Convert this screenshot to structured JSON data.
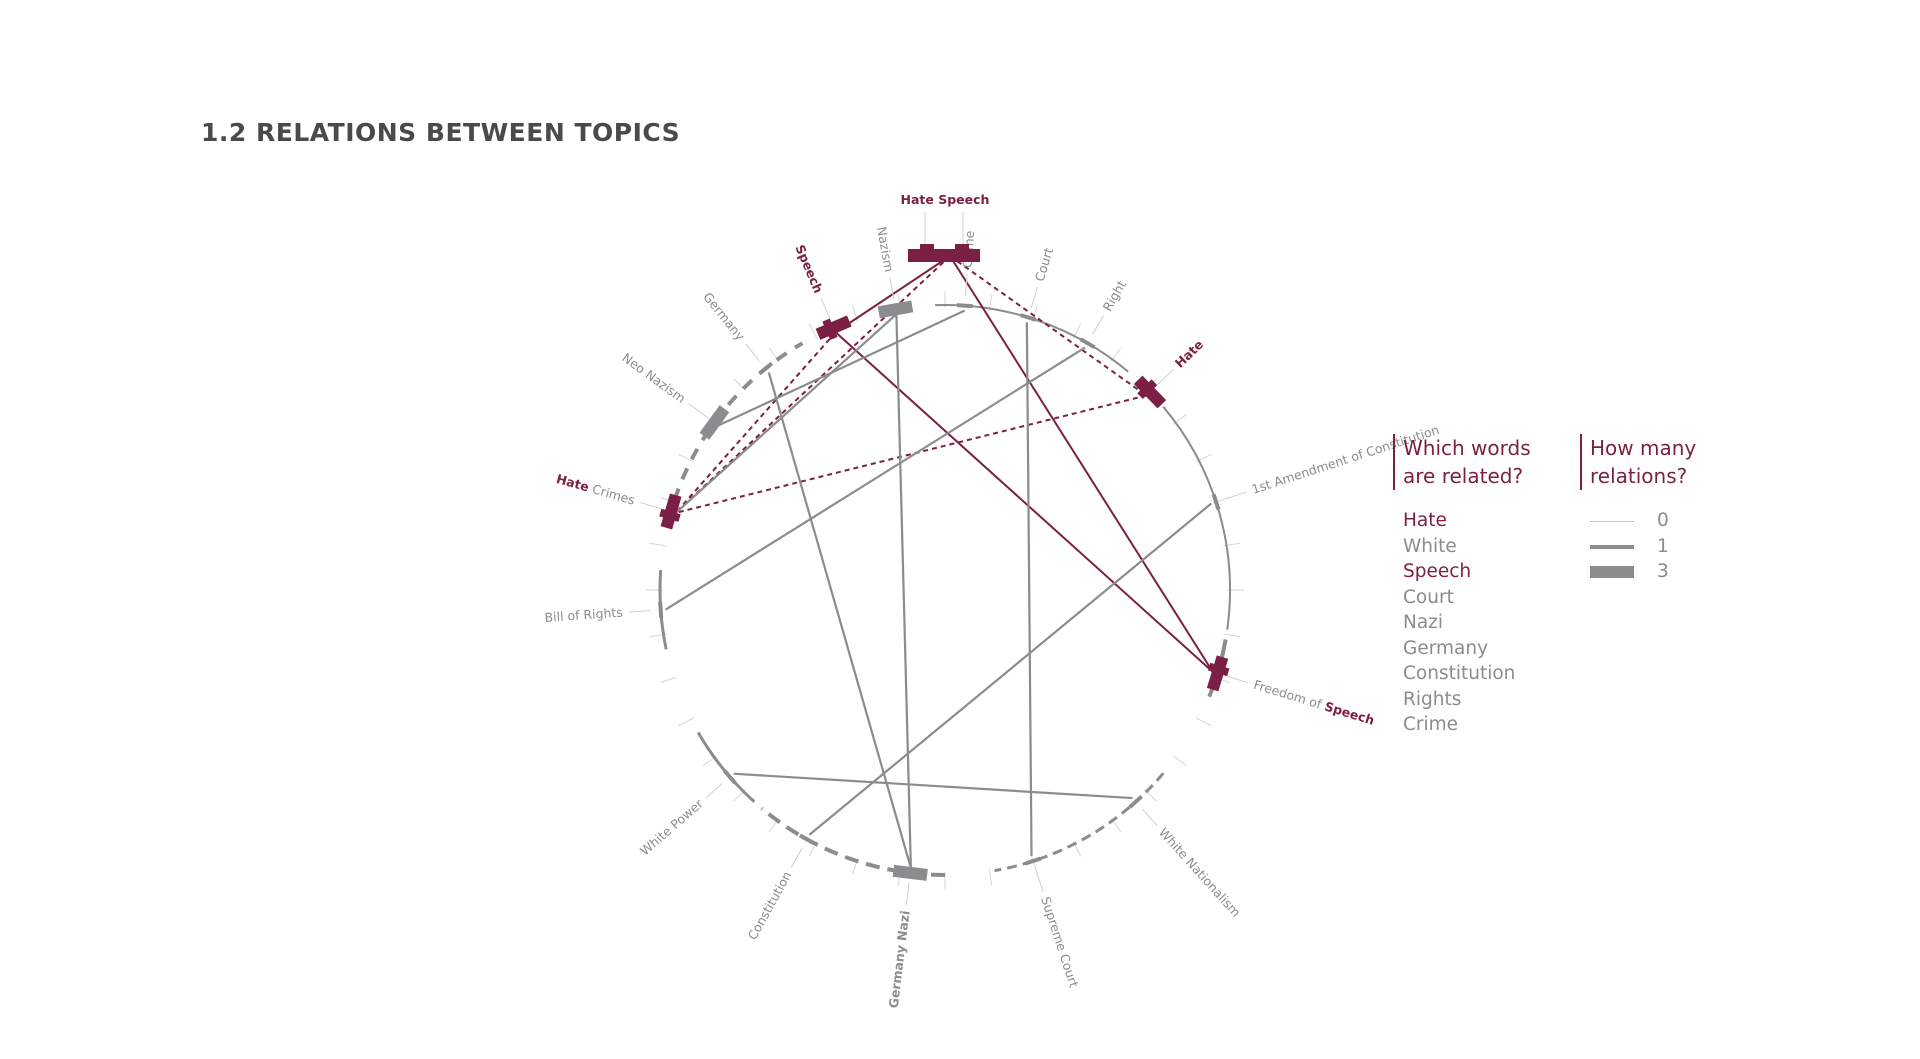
{
  "title": "1.2 RELATIONS BETWEEN TOPICS",
  "colors": {
    "highlight": "#7b1f45",
    "neutral": "#8a8c8e",
    "title": "#4a4a4a"
  },
  "diagram": {
    "nodes": [
      {
        "id": "crime",
        "label": "Crime",
        "highlight": []
      },
      {
        "id": "court",
        "label": "Court",
        "highlight": []
      },
      {
        "id": "right",
        "label": "Right",
        "highlight": []
      },
      {
        "id": "hate",
        "label": "Hate",
        "highlight": [
          "Hate"
        ]
      },
      {
        "id": "first-amendment",
        "label": "1st Amendment of Constitution",
        "highlight": []
      },
      {
        "id": "freedom-of-speech",
        "label": "Freedom of Speech",
        "highlight": [
          "Speech"
        ]
      },
      {
        "id": "white-nationalism",
        "label": "White Nationalism",
        "highlight": []
      },
      {
        "id": "supreme-court",
        "label": "Supreme Court",
        "highlight": []
      },
      {
        "id": "germany-nazi",
        "label": "Germany Nazi",
        "highlight": []
      },
      {
        "id": "constitution",
        "label": "Constitution",
        "highlight": []
      },
      {
        "id": "white-power",
        "label": "White Power",
        "highlight": []
      },
      {
        "id": "bill-of-rights",
        "label": "Bill of Rights",
        "highlight": []
      },
      {
        "id": "hate-crimes",
        "label": "Hate Crimes",
        "highlight": [
          "Hate"
        ]
      },
      {
        "id": "neo-nazism",
        "label": "Neo Nazism",
        "highlight": []
      },
      {
        "id": "germany",
        "label": "Germany",
        "highlight": []
      },
      {
        "id": "speech",
        "label": "Speech",
        "highlight": [
          "Speech"
        ]
      },
      {
        "id": "nazism",
        "label": "Nazism",
        "highlight": []
      },
      {
        "id": "hate-speech",
        "label": "Hate Speech",
        "highlight": [
          "Hate Speech"
        ]
      }
    ],
    "relations": [
      {
        "from": "speech",
        "to": "freedom-of-speech",
        "style": "solid-highlight"
      },
      {
        "from": "hate-speech",
        "to": "speech",
        "style": "solid-highlight"
      },
      {
        "from": "hate-speech",
        "to": "freedom-of-speech",
        "style": "solid-highlight"
      },
      {
        "from": "hate-speech",
        "to": "hate",
        "style": "dashed-highlight"
      },
      {
        "from": "hate-speech",
        "to": "hate-crimes",
        "style": "dashed-highlight"
      },
      {
        "from": "hate",
        "to": "hate-crimes",
        "style": "dashed-highlight"
      },
      {
        "from": "speech",
        "to": "hate-crimes",
        "style": "dashed-highlight"
      },
      {
        "from": "crime",
        "to": "neo-nazism",
        "style": "neutral"
      },
      {
        "from": "nazism",
        "to": "hate-crimes",
        "style": "neutral"
      },
      {
        "from": "nazism",
        "to": "germany-nazi",
        "style": "neutral"
      },
      {
        "from": "germany",
        "to": "germany-nazi",
        "style": "neutral"
      },
      {
        "from": "court",
        "to": "supreme-court",
        "style": "neutral"
      },
      {
        "from": "right",
        "to": "bill-of-rights",
        "style": "neutral"
      },
      {
        "from": "first-amendment",
        "to": "constitution",
        "style": "neutral"
      },
      {
        "from": "white-power",
        "to": "white-nationalism",
        "style": "neutral"
      }
    ]
  },
  "legend": {
    "words_heading": "Which words\nare related?",
    "relations_heading": "How many\nrelations?",
    "words": [
      {
        "label": "Hate",
        "highlight": true
      },
      {
        "label": "White",
        "highlight": false
      },
      {
        "label": "Speech",
        "highlight": true
      },
      {
        "label": "Court",
        "highlight": false
      },
      {
        "label": "Nazi",
        "highlight": false
      },
      {
        "label": "Germany",
        "highlight": false
      },
      {
        "label": "Constitution",
        "highlight": false
      },
      {
        "label": "Rights",
        "highlight": false
      },
      {
        "label": "Crime",
        "highlight": false
      }
    ],
    "relation_levels": [
      {
        "label": "0",
        "value": 0
      },
      {
        "label": "1",
        "value": 1
      },
      {
        "label": "3",
        "value": 3
      }
    ]
  }
}
